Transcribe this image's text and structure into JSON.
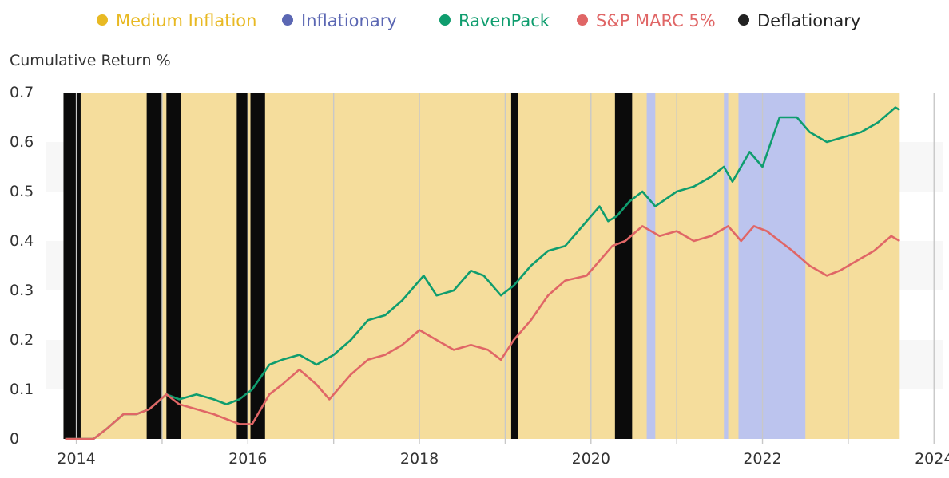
{
  "chart_data": {
    "type": "line",
    "title": "",
    "xlabel": "",
    "ylabel": "Cumulative Return %",
    "xlim": [
      2013.65,
      2024.1
    ],
    "ylim": [
      0,
      0.7
    ],
    "x_ticks": [
      "2014",
      "2016",
      "2018",
      "2020",
      "2022",
      "2024"
    ],
    "y_ticks": [
      "0",
      "0.1",
      "0.2",
      "0.3",
      "0.4",
      "0.5",
      "0.6",
      "0.7"
    ],
    "grid": true,
    "legend_position": "top",
    "legend": [
      {
        "label": "Medium Inflation",
        "color": "#e8b923"
      },
      {
        "label": "Inflationary",
        "color": "#5b67b3"
      },
      {
        "label": "RavenPack",
        "color": "#0f9d6e"
      },
      {
        "label": "S&P MARC 5%",
        "color": "#e06666"
      },
      {
        "label": "Deflationary",
        "color": "#222222"
      }
    ],
    "regimes": [
      {
        "regime": "Medium Inflation",
        "start": 2013.85,
        "end": 2023.6
      },
      {
        "regime": "Deflationary",
        "start": 2013.85,
        "end": 2014.05
      },
      {
        "regime": "Deflationary",
        "start": 2014.82,
        "end": 2015.0
      },
      {
        "regime": "Deflationary",
        "start": 2015.05,
        "end": 2015.22
      },
      {
        "regime": "Deflationary",
        "start": 2015.87,
        "end": 2016.0
      },
      {
        "regime": "Deflationary",
        "start": 2016.03,
        "end": 2016.2
      },
      {
        "regime": "Deflationary",
        "start": 2019.07,
        "end": 2019.15
      },
      {
        "regime": "Deflationary",
        "start": 2020.28,
        "end": 2020.48
      },
      {
        "regime": "Inflationary",
        "start": 2020.65,
        "end": 2020.75
      },
      {
        "regime": "Inflationary",
        "start": 2021.55,
        "end": 2021.6
      },
      {
        "regime": "Inflationary",
        "start": 2021.72,
        "end": 2022.5
      }
    ],
    "series": [
      {
        "name": "RavenPack",
        "color": "#0f9d6e",
        "x": [
          2013.87,
          2014.0,
          2014.2,
          2014.35,
          2014.55,
          2014.7,
          2014.85,
          2015.05,
          2015.2,
          2015.4,
          2015.6,
          2015.75,
          2015.9,
          2016.05,
          2016.25,
          2016.4,
          2016.6,
          2016.8,
          2017.0,
          2017.2,
          2017.4,
          2017.6,
          2017.8,
          2018.05,
          2018.2,
          2018.4,
          2018.6,
          2018.75,
          2018.95,
          2019.1,
          2019.3,
          2019.5,
          2019.7,
          2019.9,
          2020.1,
          2020.2,
          2020.3,
          2020.45,
          2020.6,
          2020.75,
          2021.0,
          2021.2,
          2021.4,
          2021.55,
          2021.65,
          2021.85,
          2022.0,
          2022.2,
          2022.4,
          2022.55,
          2022.75,
          2022.95,
          2023.15,
          2023.35,
          2023.55,
          2023.6
        ],
        "y": [
          0.0,
          0.0,
          0.0,
          0.02,
          0.05,
          0.05,
          0.06,
          0.09,
          0.08,
          0.09,
          0.08,
          0.07,
          0.08,
          0.1,
          0.15,
          0.16,
          0.17,
          0.15,
          0.17,
          0.2,
          0.24,
          0.25,
          0.28,
          0.33,
          0.29,
          0.3,
          0.34,
          0.33,
          0.29,
          0.31,
          0.35,
          0.38,
          0.39,
          0.43,
          0.47,
          0.44,
          0.45,
          0.48,
          0.5,
          0.47,
          0.5,
          0.51,
          0.53,
          0.55,
          0.52,
          0.58,
          0.55,
          0.65,
          0.65,
          0.62,
          0.6,
          0.61,
          0.62,
          0.64,
          0.67,
          0.665
        ]
      },
      {
        "name": "S&P MARC 5%",
        "color": "#e06666",
        "x": [
          2013.87,
          2014.0,
          2014.2,
          2014.35,
          2014.55,
          2014.7,
          2014.85,
          2015.05,
          2015.2,
          2015.4,
          2015.6,
          2015.75,
          2015.9,
          2016.05,
          2016.25,
          2016.4,
          2016.6,
          2016.8,
          2016.95,
          2017.2,
          2017.4,
          2017.6,
          2017.8,
          2018.0,
          2018.2,
          2018.4,
          2018.6,
          2018.8,
          2018.95,
          2019.1,
          2019.3,
          2019.5,
          2019.7,
          2019.95,
          2020.1,
          2020.25,
          2020.4,
          2020.6,
          2020.8,
          2021.0,
          2021.2,
          2021.4,
          2021.6,
          2021.75,
          2021.9,
          2022.05,
          2022.2,
          2022.35,
          2022.55,
          2022.75,
          2022.9,
          2023.1,
          2023.3,
          2023.5,
          2023.6
        ],
        "y": [
          0.0,
          0.0,
          0.0,
          0.02,
          0.05,
          0.05,
          0.06,
          0.09,
          0.07,
          0.06,
          0.05,
          0.04,
          0.03,
          0.03,
          0.09,
          0.11,
          0.14,
          0.11,
          0.08,
          0.13,
          0.16,
          0.17,
          0.19,
          0.22,
          0.2,
          0.18,
          0.19,
          0.18,
          0.16,
          0.2,
          0.24,
          0.29,
          0.32,
          0.33,
          0.36,
          0.39,
          0.4,
          0.43,
          0.41,
          0.42,
          0.4,
          0.41,
          0.43,
          0.4,
          0.43,
          0.42,
          0.4,
          0.38,
          0.35,
          0.33,
          0.34,
          0.36,
          0.38,
          0.41,
          0.4
        ]
      }
    ]
  }
}
